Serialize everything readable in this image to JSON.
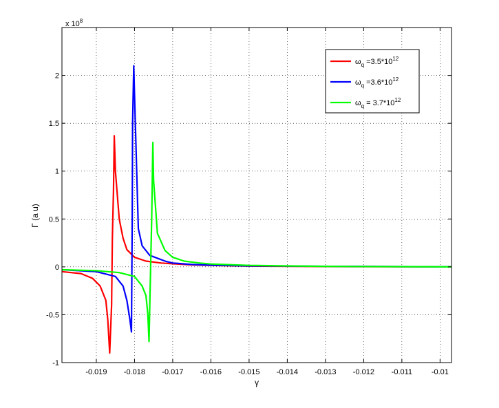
{
  "chart_data": {
    "type": "line",
    "title": "",
    "xlabel": "γ",
    "ylabel": "Γ (a u)",
    "y_exponent_label": "x 10",
    "y_exponent_power": "8",
    "xlim": [
      -0.0199,
      -0.0097
    ],
    "ylim": [
      -1.0,
      2.5
    ],
    "grid": true,
    "legend_position": "top-right",
    "x_ticks": [
      -0.019,
      -0.018,
      -0.017,
      -0.016,
      -0.015,
      -0.014,
      -0.013,
      -0.012,
      -0.011,
      -0.01
    ],
    "x_tick_labels": [
      "-0.019",
      "-0.018",
      "-0.017",
      "-0.016",
      "-0.015",
      "-0.014",
      "-0.013",
      "-0.012",
      "-0.011",
      "-0.01"
    ],
    "y_ticks": [
      -1,
      -0.5,
      0,
      0.5,
      1,
      1.5,
      2
    ],
    "y_tick_labels": [
      "-1",
      "-0.5",
      "0",
      "0.5",
      "1",
      "1.5",
      "2"
    ],
    "series": [
      {
        "legend_base": "ω",
        "legend_sub": "q",
        "legend_mid": " =3.5*10",
        "legend_sup": "12",
        "color": "#ff0000",
        "points": [
          [
            -0.0199,
            -0.05
          ],
          [
            -0.0194,
            -0.07
          ],
          [
            -0.0191,
            -0.12
          ],
          [
            -0.0189,
            -0.2
          ],
          [
            -0.01875,
            -0.35
          ],
          [
            -0.0187,
            -0.55
          ],
          [
            -0.01865,
            -0.9
          ],
          [
            -0.0186,
            -0.4
          ],
          [
            -0.01858,
            0.3
          ],
          [
            -0.01855,
            0.8
          ],
          [
            -0.01853,
            1.37
          ],
          [
            -0.0185,
            1.0
          ],
          [
            -0.0184,
            0.5
          ],
          [
            -0.0183,
            0.3
          ],
          [
            -0.0182,
            0.18
          ],
          [
            -0.018,
            0.1
          ],
          [
            -0.0177,
            0.06
          ],
          [
            -0.0173,
            0.04
          ],
          [
            -0.0165,
            0.02
          ],
          [
            -0.016,
            0.015
          ],
          [
            -0.015,
            0.008
          ],
          [
            -0.013,
            0.003
          ],
          [
            -0.0097,
            0.0
          ]
        ]
      },
      {
        "legend_base": "ω",
        "legend_sub": "q",
        "legend_mid": " =3.6*10",
        "legend_sup": "12",
        "color": "#0000ff",
        "points": [
          [
            -0.0199,
            -0.03
          ],
          [
            -0.019,
            -0.05
          ],
          [
            -0.0185,
            -0.1
          ],
          [
            -0.0183,
            -0.2
          ],
          [
            -0.0182,
            -0.35
          ],
          [
            -0.01812,
            -0.55
          ],
          [
            -0.01808,
            -0.68
          ],
          [
            -0.01806,
            0.5
          ],
          [
            -0.01805,
            1.5
          ],
          [
            -0.01802,
            2.1
          ],
          [
            -0.018,
            1.8
          ],
          [
            -0.0179,
            0.4
          ],
          [
            -0.0178,
            0.22
          ],
          [
            -0.0176,
            0.12
          ],
          [
            -0.0172,
            0.06
          ],
          [
            -0.017,
            0.04
          ],
          [
            -0.0165,
            0.025
          ],
          [
            -0.016,
            0.018
          ],
          [
            -0.015,
            0.01
          ],
          [
            -0.0097,
            0.0
          ]
        ]
      },
      {
        "legend_base": "ω",
        "legend_sub": "q",
        "legend_mid": " = 3.7*10",
        "legend_sup": "12",
        "color": "#00ff00",
        "points": [
          [
            -0.0199,
            -0.03
          ],
          [
            -0.019,
            -0.04
          ],
          [
            -0.0184,
            -0.06
          ],
          [
            -0.018,
            -0.1
          ],
          [
            -0.0178,
            -0.2
          ],
          [
            -0.0177,
            -0.3
          ],
          [
            -0.01765,
            -0.5
          ],
          [
            -0.01762,
            -0.78
          ],
          [
            -0.0176,
            -0.4
          ],
          [
            -0.01755,
            0.5
          ],
          [
            -0.01752,
            1.3
          ],
          [
            -0.0175,
            0.9
          ],
          [
            -0.0174,
            0.35
          ],
          [
            -0.0172,
            0.17
          ],
          [
            -0.017,
            0.1
          ],
          [
            -0.0167,
            0.06
          ],
          [
            -0.0163,
            0.04
          ],
          [
            -0.016,
            0.03
          ],
          [
            -0.015,
            0.015
          ],
          [
            -0.014,
            0.01
          ],
          [
            -0.013,
            0.005
          ],
          [
            -0.0097,
            0.0
          ]
        ]
      }
    ]
  }
}
